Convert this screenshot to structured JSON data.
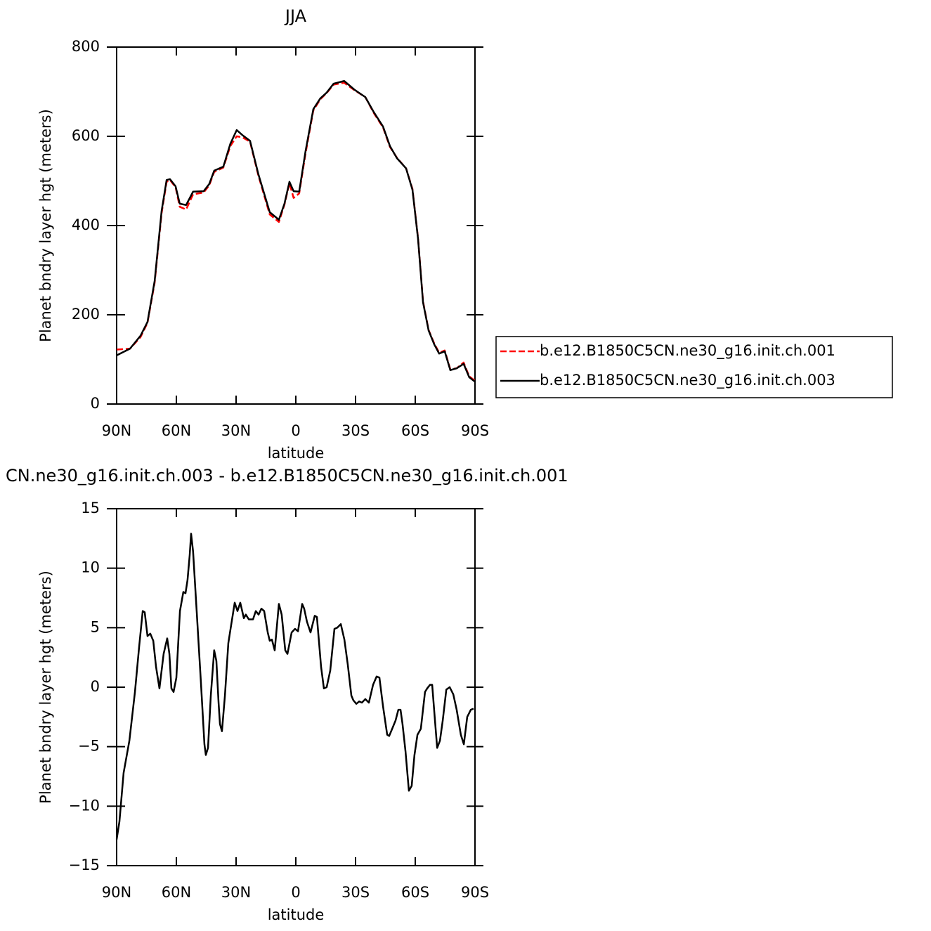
{
  "chart_data": [
    {
      "type": "line",
      "title": "JJA",
      "xlabel": "latitude",
      "ylabel": "Planet bndry layer hgt (meters)",
      "xlim": [
        90,
        -90
      ],
      "xticks": [
        {
          "value": 90,
          "label": "90N"
        },
        {
          "value": 60,
          "label": "60N"
        },
        {
          "value": 30,
          "label": "30N"
        },
        0,
        {
          "value": -30,
          "label": "30S"
        },
        {
          "value": -60,
          "label": "60S"
        },
        {
          "value": -90,
          "label": "90S"
        }
      ],
      "ylim": [
        0,
        800
      ],
      "yticks": [
        0,
        200,
        400,
        600,
        800
      ],
      "legend": "right",
      "x": [
        90.0,
        83.3,
        78.0,
        74.5,
        70.9,
        67.4,
        64.9,
        63.2,
        60.4,
        58.3,
        55.1,
        51.6,
        46.3,
        43.5,
        41.0,
        36.4,
        32.9,
        29.7,
        26.9,
        23.0,
        18.8,
        13.1,
        8.5,
        5.7,
        3.2,
        1.1,
        -1.7,
        -4.9,
        -8.8,
        -12.3,
        -15.5,
        -19.0,
        -24.3,
        -29.6,
        -34.9,
        -39.2,
        -43.8,
        -47.3,
        -50.8,
        -55.4,
        -58.6,
        -61.4,
        -63.9,
        -66.7,
        -69.5,
        -72.0,
        -74.8,
        -77.6,
        -80.8,
        -84.3,
        -87.1,
        -90.0
      ],
      "series": [
        {
          "name": "b.e12.B1850C5CN.ne30_g16.init.ch.001",
          "color": "#ff0000",
          "dash": "dashed",
          "values": [
            122,
            124,
            150,
            182,
            272,
            428,
            498,
            502,
            486,
            442,
            436,
            470,
            474,
            490,
            520,
            530,
            578,
            600,
            598,
            588,
            512,
            425,
            408,
            447,
            495,
            462,
            472,
            562,
            658,
            683,
            697,
            716,
            720,
            703,
            688,
            652,
            620,
            576,
            552,
            528,
            482,
            372,
            230,
            166,
            136,
            115,
            120,
            78,
            80,
            93,
            62,
            52
          ]
        },
        {
          "name": "b.e12.B1850C5CN.ne30_g16.init.ch.003",
          "color": "#000000",
          "dash": "solid",
          "values": [
            109,
            124,
            153,
            184,
            276,
            433,
            502,
            504,
            488,
            449,
            446,
            476,
            477,
            493,
            523,
            532,
            583,
            614,
            603,
            590,
            515,
            430,
            413,
            449,
            498,
            477,
            476,
            567,
            661,
            685,
            698,
            718,
            724,
            704,
            688,
            654,
            622,
            578,
            551,
            528,
            480,
            370,
            228,
            165,
            134,
            113,
            118,
            76,
            80,
            90,
            60,
            50
          ]
        }
      ]
    },
    {
      "type": "line",
      "title": "CN.ne30_g16.init.ch.003 - b.e12.B1850C5CN.ne30_g16.init.ch.001",
      "xlabel": "latitude",
      "ylabel": "Planet bndry layer hgt (meters)",
      "xlim": [
        90,
        -90
      ],
      "xticks": [
        {
          "value": 90,
          "label": "90N"
        },
        {
          "value": 60,
          "label": "60N"
        },
        {
          "value": 30,
          "label": "30N"
        },
        0,
        {
          "value": -30,
          "label": "30S"
        },
        {
          "value": -60,
          "label": "60S"
        },
        {
          "value": -90,
          "label": "90S"
        }
      ],
      "ylim": [
        -15,
        15
      ],
      "yticks": [
        {
          "value": -15,
          "label": "−15"
        },
        {
          "value": -10,
          "label": "−10"
        },
        {
          "value": -5,
          "label": "−5"
        },
        0,
        5,
        10,
        15
      ],
      "x": [
        90.0,
        88.6,
        86.5,
        83.6,
        80.8,
        78.7,
        76.9,
        75.9,
        74.5,
        73.1,
        71.6,
        70.2,
        68.5,
        66.4,
        64.6,
        63.5,
        62.5,
        61.4,
        60.0,
        58.2,
        56.5,
        55.4,
        54.4,
        53.3,
        52.6,
        51.6,
        49.8,
        47.7,
        45.9,
        45.2,
        44.1,
        42.7,
        41.0,
        39.9,
        38.8,
        38.1,
        37.1,
        35.6,
        33.9,
        32.5,
        30.7,
        29.3,
        27.9,
        26.1,
        25.1,
        23.6,
        21.5,
        20.1,
        18.7,
        17.3,
        15.9,
        14.1,
        13.1,
        12.0,
        10.6,
        8.5,
        7.1,
        5.3,
        4.2,
        2.1,
        0.4,
        -1.1,
        -3.2,
        -4.2,
        -5.6,
        -7.4,
        -9.5,
        -10.6,
        -12.7,
        -14.1,
        -15.5,
        -17.3,
        -19.4,
        -20.8,
        -22.6,
        -24.4,
        -26.1,
        -27.9,
        -28.9,
        -30.4,
        -31.8,
        -33.2,
        -34.9,
        -36.7,
        -38.8,
        -40.6,
        -42.0,
        -43.8,
        -45.9,
        -46.9,
        -48.4,
        -50.1,
        -51.5,
        -52.6,
        -53.6,
        -55.1,
        -56.8,
        -58.2,
        -59.6,
        -61.1,
        -62.8,
        -64.9,
        -66.0,
        -67.4,
        -68.5,
        -69.9,
        -71.0,
        -72.4,
        -73.8,
        -75.6,
        -77.3,
        -79.1,
        -80.8,
        -82.9,
        -84.4,
        -86.1,
        -87.9,
        -89.3
      ],
      "series": [
        {
          "name": null,
          "color": "#000000",
          "dash": "solid",
          "values": [
            -12.8,
            -11.3,
            -7.2,
            -4.5,
            -0.4,
            3.4,
            6.4,
            6.3,
            4.3,
            4.5,
            3.9,
            1.7,
            -0.1,
            2.8,
            4.1,
            2.8,
            -0.1,
            -0.4,
            0.8,
            6.4,
            8.0,
            7.9,
            9.0,
            11.1,
            12.9,
            11.4,
            6.4,
            0.5,
            -4.8,
            -5.7,
            -5.1,
            -0.7,
            3.1,
            2.2,
            -1.3,
            -3.1,
            -3.7,
            -0.7,
            3.7,
            5.2,
            7.1,
            6.4,
            7.1,
            5.8,
            6.1,
            5.7,
            5.7,
            6.4,
            6.1,
            6.6,
            6.4,
            4.6,
            3.9,
            4.0,
            3.1,
            7.0,
            6.1,
            3.1,
            2.8,
            4.6,
            4.9,
            4.7,
            7.0,
            6.6,
            5.5,
            4.6,
            6.0,
            5.9,
            1.7,
            -0.1,
            0.0,
            1.4,
            4.9,
            5.0,
            5.3,
            4.0,
            1.9,
            -0.7,
            -1.1,
            -1.4,
            -1.2,
            -1.3,
            -1.0,
            -1.3,
            0.2,
            0.9,
            0.8,
            -1.6,
            -4.0,
            -4.1,
            -3.5,
            -2.8,
            -1.9,
            -1.9,
            -3.1,
            -5.4,
            -8.7,
            -8.3,
            -5.7,
            -4.0,
            -3.5,
            -0.4,
            -0.1,
            0.2,
            0.2,
            -2.8,
            -5.1,
            -4.5,
            -2.8,
            -0.2,
            0.0,
            -0.6,
            -1.9,
            -4.0,
            -4.8,
            -2.5,
            -1.9,
            -1.8
          ]
        }
      ]
    }
  ]
}
